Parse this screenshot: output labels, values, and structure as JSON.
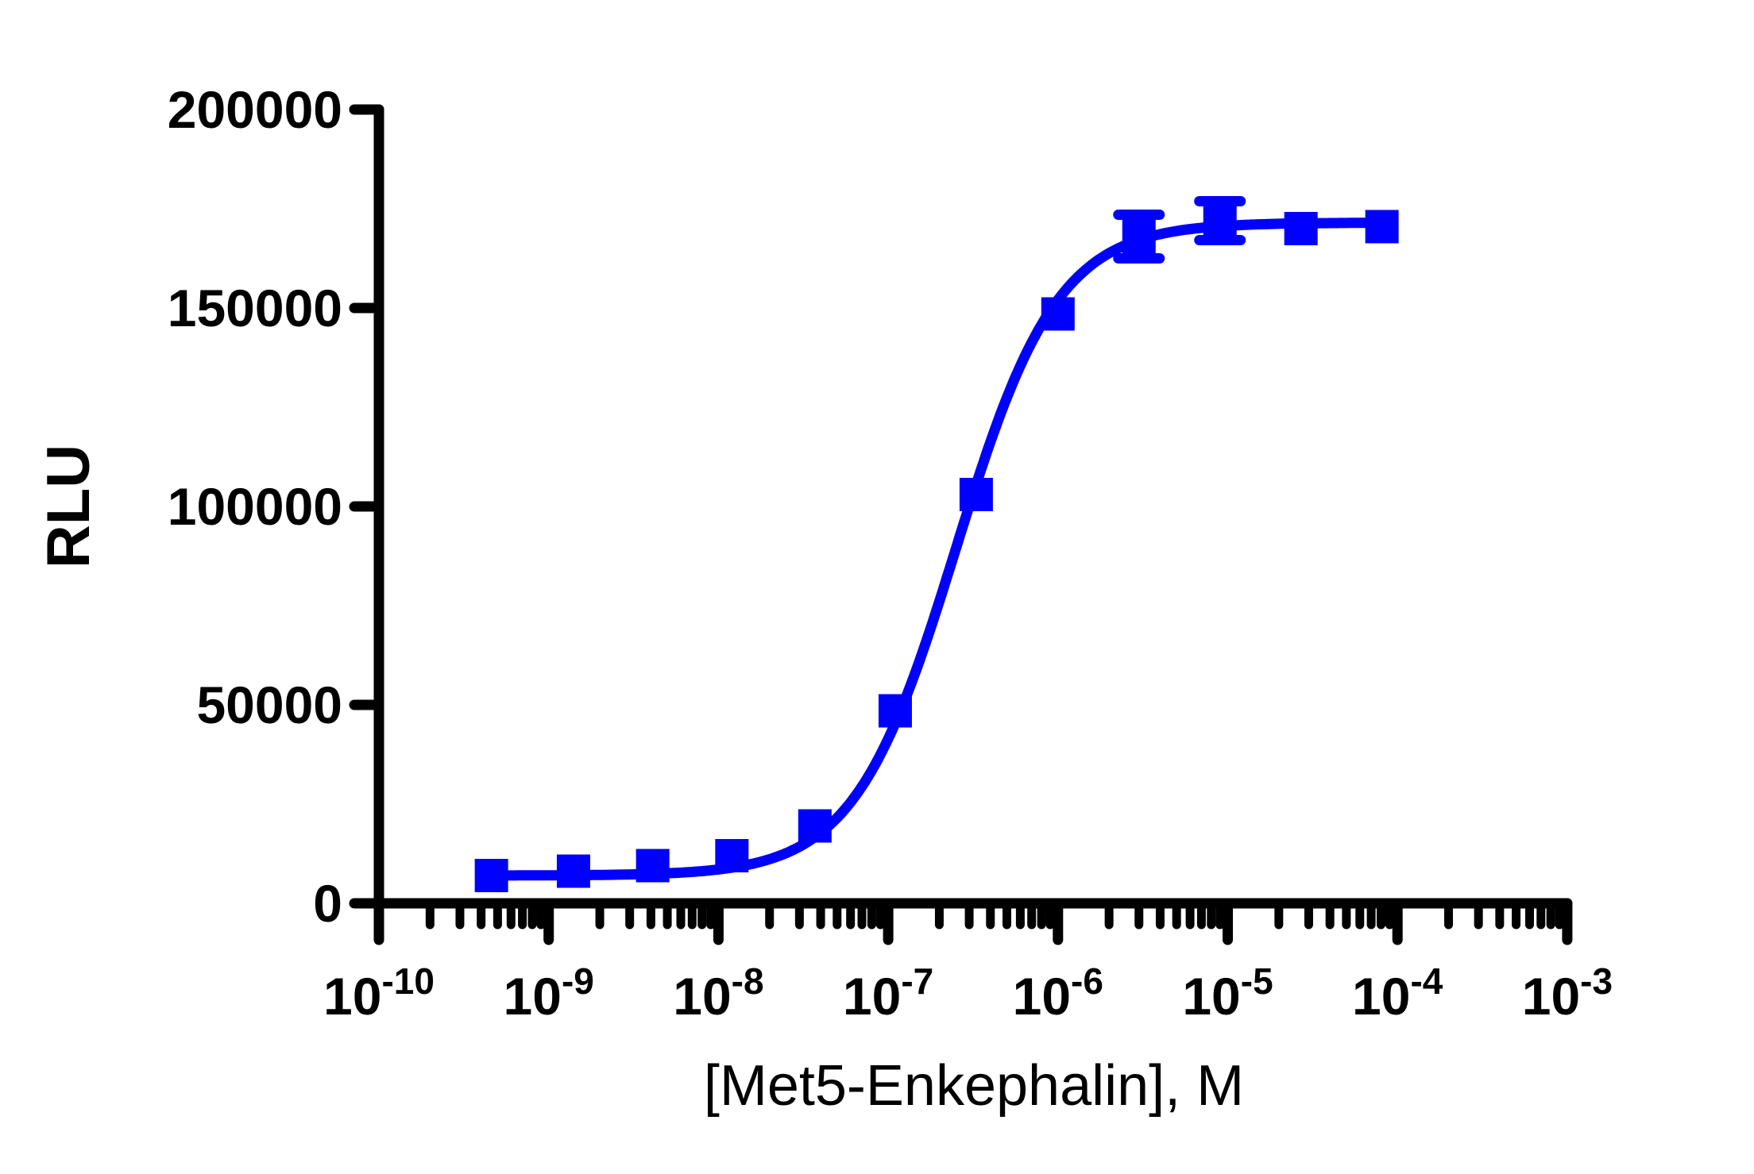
{
  "chart_data": {
    "type": "scatter",
    "subtype": "dose-response-curve",
    "title": "",
    "xlabel": "[Met5-Enkephalin], M",
    "ylabel": "RLU",
    "x_scale": "log10",
    "x_decade_exponents": [
      -10,
      -9,
      -8,
      -7,
      -6,
      -5,
      -4,
      -3
    ],
    "x_minor_ticks": "log-subdivisions-2-to-9",
    "xlim_exponents": [
      -10,
      -3
    ],
    "ylim": [
      0,
      200000
    ],
    "y_ticks": [
      0,
      50000,
      100000,
      150000,
      200000
    ],
    "y_tick_labels": [
      "0",
      "50000",
      "100000",
      "150000",
      "200000"
    ],
    "grid": false,
    "legend": "none",
    "series": [
      {
        "name": "Met5-Enkephalin",
        "color": "#0000FF",
        "marker": "filled-square",
        "line": "4PL-fit-curve",
        "x_molar": [
          4.6e-10,
          1.4e-09,
          4.1e-09,
          1.2e-08,
          3.7e-08,
          1.1e-07,
          3.3e-07,
          1e-06,
          3e-06,
          9e-06,
          2.7e-05,
          8.1e-05
        ],
        "y_rlu": [
          7000,
          8100,
          9500,
          12000,
          19500,
          48500,
          103000,
          148500,
          168000,
          172000,
          170000,
          170500
        ],
        "y_error": [
          0,
          0,
          0,
          0,
          0,
          0,
          0,
          0,
          5500,
          4900,
          0,
          0
        ],
        "fit": {
          "model": "4PL",
          "bottom": 7000,
          "top": 171500,
          "ec50": 2.5e-07,
          "hill": 1.45
        }
      }
    ]
  }
}
